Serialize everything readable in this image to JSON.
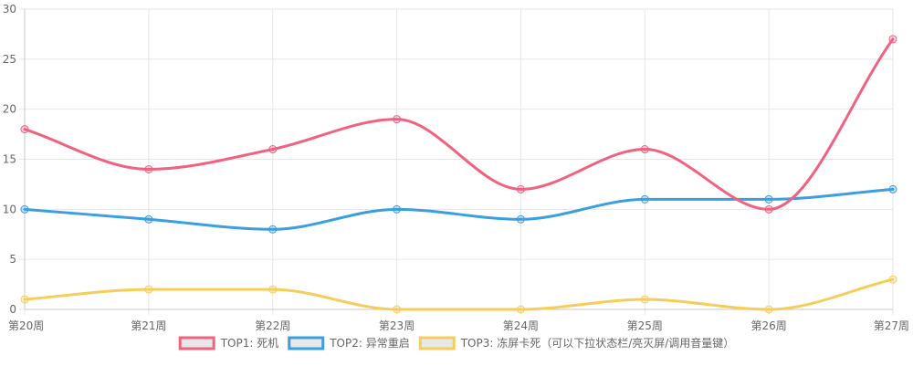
{
  "chart_data": {
    "type": "line",
    "categories": [
      "第20周",
      "第21周",
      "第22周",
      "第23周",
      "第24周",
      "第25周",
      "第26周",
      "第27周"
    ],
    "series": [
      {
        "name": "TOP1: 死机",
        "values": [
          18,
          14,
          16,
          19,
          12,
          16,
          10,
          27
        ],
        "color": "#f0627f"
      },
      {
        "name": "TOP2: 异常重启",
        "values": [
          10,
          9,
          8,
          10,
          9,
          11,
          11,
          12
        ],
        "color": "#3a9fe0"
      },
      {
        "name": "TOP3: 冻屏卡死（可以下拉状态栏/亮灭屏/调用音量键）",
        "values": [
          1,
          2,
          2,
          0,
          0,
          1,
          0,
          3
        ],
        "color": "#f7cd5a"
      }
    ],
    "y_ticks": [
      "0",
      "5",
      "10",
      "15",
      "20",
      "25",
      "30"
    ],
    "ylim": [
      0,
      30
    ],
    "grid": true,
    "legend_position": "bottom",
    "legend_swatch_fill": "#e8e8e8",
    "grid_color": "#e6e6e6",
    "axis_color": "#c8c8c8"
  }
}
